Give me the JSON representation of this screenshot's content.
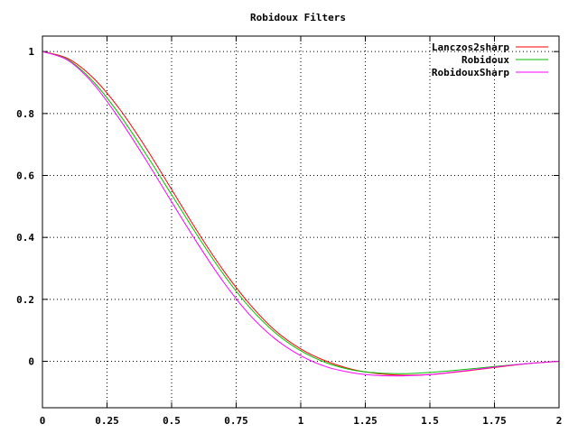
{
  "chart_data": {
    "type": "line",
    "title": "Robidoux Filters",
    "xlabel": "",
    "ylabel": "",
    "xlim": [
      0,
      2
    ],
    "ylim": [
      -0.15,
      1.05
    ],
    "grid": true,
    "legend_position": "top-right",
    "x_ticks": [
      {
        "value": 0,
        "label": "0"
      },
      {
        "value": 0.25,
        "label": "0.25"
      },
      {
        "value": 0.5,
        "label": "0.5"
      },
      {
        "value": 0.75,
        "label": "0.75"
      },
      {
        "value": 1,
        "label": "1"
      },
      {
        "value": 1.25,
        "label": "1.25"
      },
      {
        "value": 1.5,
        "label": "1.5"
      },
      {
        "value": 1.75,
        "label": "1.75"
      },
      {
        "value": 2,
        "label": "2"
      }
    ],
    "y_ticks": [
      {
        "value": 1,
        "label": "1"
      },
      {
        "value": 0.8,
        "label": "0.8"
      },
      {
        "value": 0.6,
        "label": "0.6"
      },
      {
        "value": 0.4,
        "label": "0.4"
      },
      {
        "value": 0.2,
        "label": "0.2"
      },
      {
        "value": 0,
        "label": "0"
      }
    ],
    "x": [
      0,
      0.1,
      0.2,
      0.3,
      0.4,
      0.5,
      0.6,
      0.7,
      0.8,
      0.9,
      1.0,
      1.1,
      1.2,
      1.3,
      1.4,
      1.5,
      1.6,
      1.7,
      1.8,
      1.9,
      2.0
    ],
    "series": [
      {
        "name": "Lanczos2sharp",
        "color": "#ff0000",
        "values": [
          1.0,
          0.977,
          0.912,
          0.813,
          0.69,
          0.555,
          0.419,
          0.294,
          0.187,
          0.1,
          0.04,
          0.0,
          -0.026,
          -0.04,
          -0.045,
          -0.043,
          -0.035,
          -0.025,
          -0.015,
          -0.006,
          0.0
        ]
      },
      {
        "name": "Robidoux",
        "color": "#00c000",
        "values": [
          1.0,
          0.973,
          0.9,
          0.795,
          0.67,
          0.538,
          0.406,
          0.282,
          0.176,
          0.093,
          0.034,
          -0.005,
          -0.028,
          -0.038,
          -0.04,
          -0.036,
          -0.029,
          -0.021,
          -0.013,
          -0.006,
          0.0
        ]
      },
      {
        "name": "RobidouxSharp",
        "color": "#ff00ff",
        "values": [
          1.0,
          0.971,
          0.893,
          0.78,
          0.651,
          0.515,
          0.381,
          0.257,
          0.152,
          0.073,
          0.018,
          -0.018,
          -0.037,
          -0.046,
          -0.047,
          -0.043,
          -0.034,
          -0.024,
          -0.014,
          -0.006,
          0.0
        ]
      }
    ]
  }
}
